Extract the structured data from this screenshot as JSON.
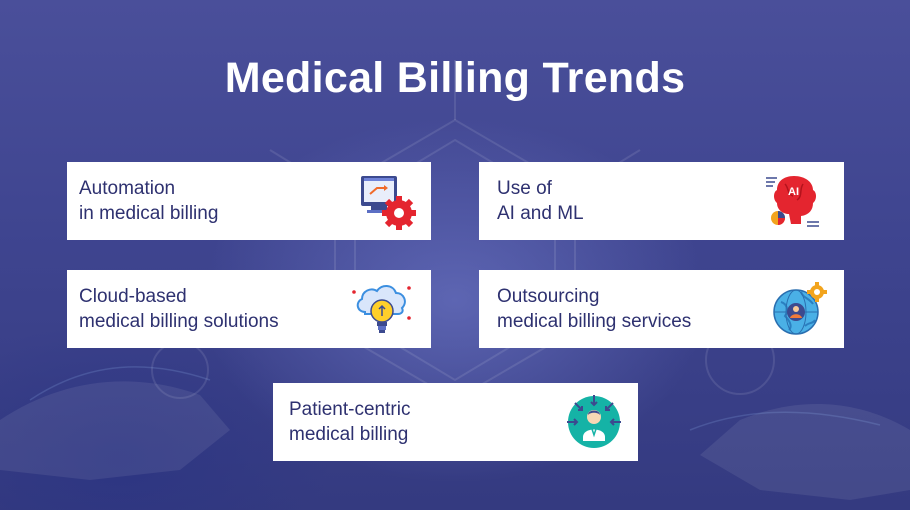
{
  "title": "Medical Billing Trends",
  "colors": {
    "background": "#3f4590",
    "card": "#ffffff",
    "card_text": "#2e3170",
    "title": "#ffffff"
  },
  "cards": [
    {
      "line1": "Automation",
      "line2": "in medical billing",
      "icon": "automation-gear-icon"
    },
    {
      "line1": "Use of",
      "line2": "AI and ML",
      "icon": "ai-brain-icon"
    },
    {
      "line1": "Cloud-based",
      "line2": "medical billing solutions",
      "icon": "cloud-idea-icon"
    },
    {
      "line1": "Outsourcing",
      "line2": "medical billing services",
      "icon": "globe-gear-icon"
    },
    {
      "line1": "Patient-centric",
      "line2": "medical billing",
      "icon": "patient-centric-icon"
    }
  ]
}
